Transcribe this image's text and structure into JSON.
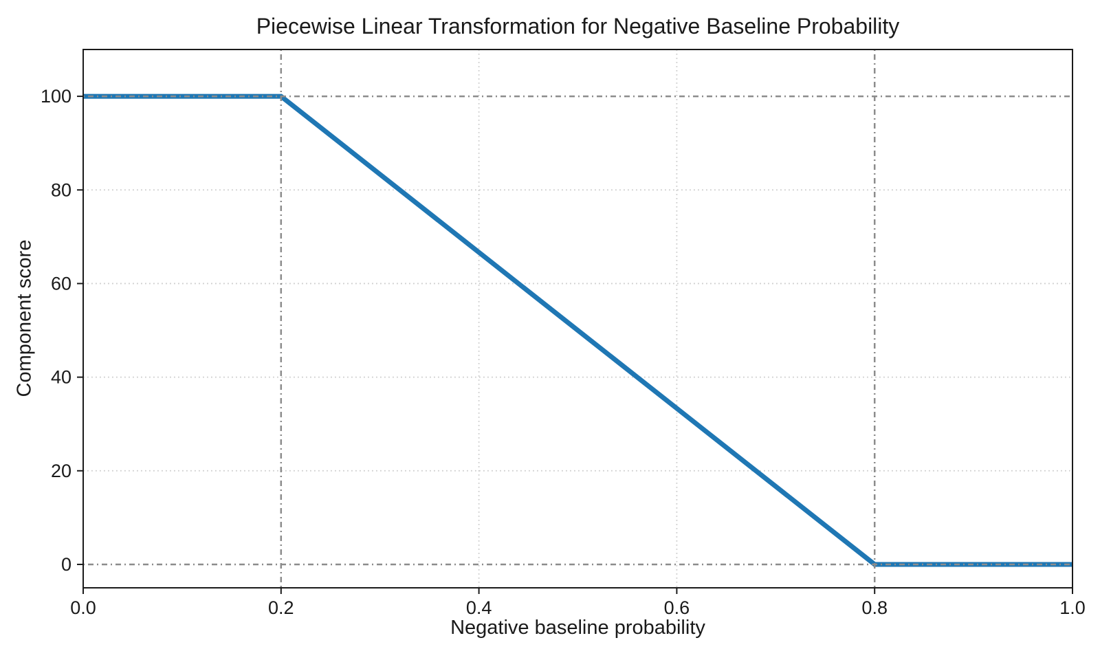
{
  "chart_data": {
    "type": "line",
    "title": "Piecewise Linear Transformation for Negative Baseline Probability",
    "xlabel": "Negative baseline probability",
    "ylabel": "Component score",
    "series": [
      {
        "name": "piecewise-linear-transform",
        "x": [
          0.0,
          0.2,
          0.8,
          1.0
        ],
        "y": [
          100,
          100,
          0,
          0
        ]
      }
    ],
    "xlim": [
      0.0,
      1.0
    ],
    "ylim": [
      -5,
      110
    ],
    "xticks": {
      "values": [
        0.0,
        0.2,
        0.4,
        0.6,
        0.8,
        1.0
      ],
      "labels": [
        "0.0",
        "0.2",
        "0.4",
        "0.6",
        "0.8",
        "1.0"
      ]
    },
    "yticks": {
      "values": [
        0,
        20,
        40,
        60,
        80,
        100
      ],
      "labels": [
        "0",
        "20",
        "40",
        "60",
        "80",
        "100"
      ]
    },
    "grid": {
      "on": true,
      "style": "dotted",
      "x_values": [
        0.4,
        0.6
      ],
      "y_values": [
        20,
        40,
        60,
        80
      ]
    },
    "reference_lines": {
      "style": "dash-dot",
      "x_values": [
        0.2,
        0.8
      ],
      "y_values": [
        0,
        100
      ]
    },
    "legend": {
      "visible": false
    },
    "colors": {
      "line": "#1f77b4",
      "grid": "#cccccc",
      "reference": "#8c8c8c",
      "axis": "#1a1a1a",
      "background": "#ffffff"
    },
    "line_width": 7
  }
}
